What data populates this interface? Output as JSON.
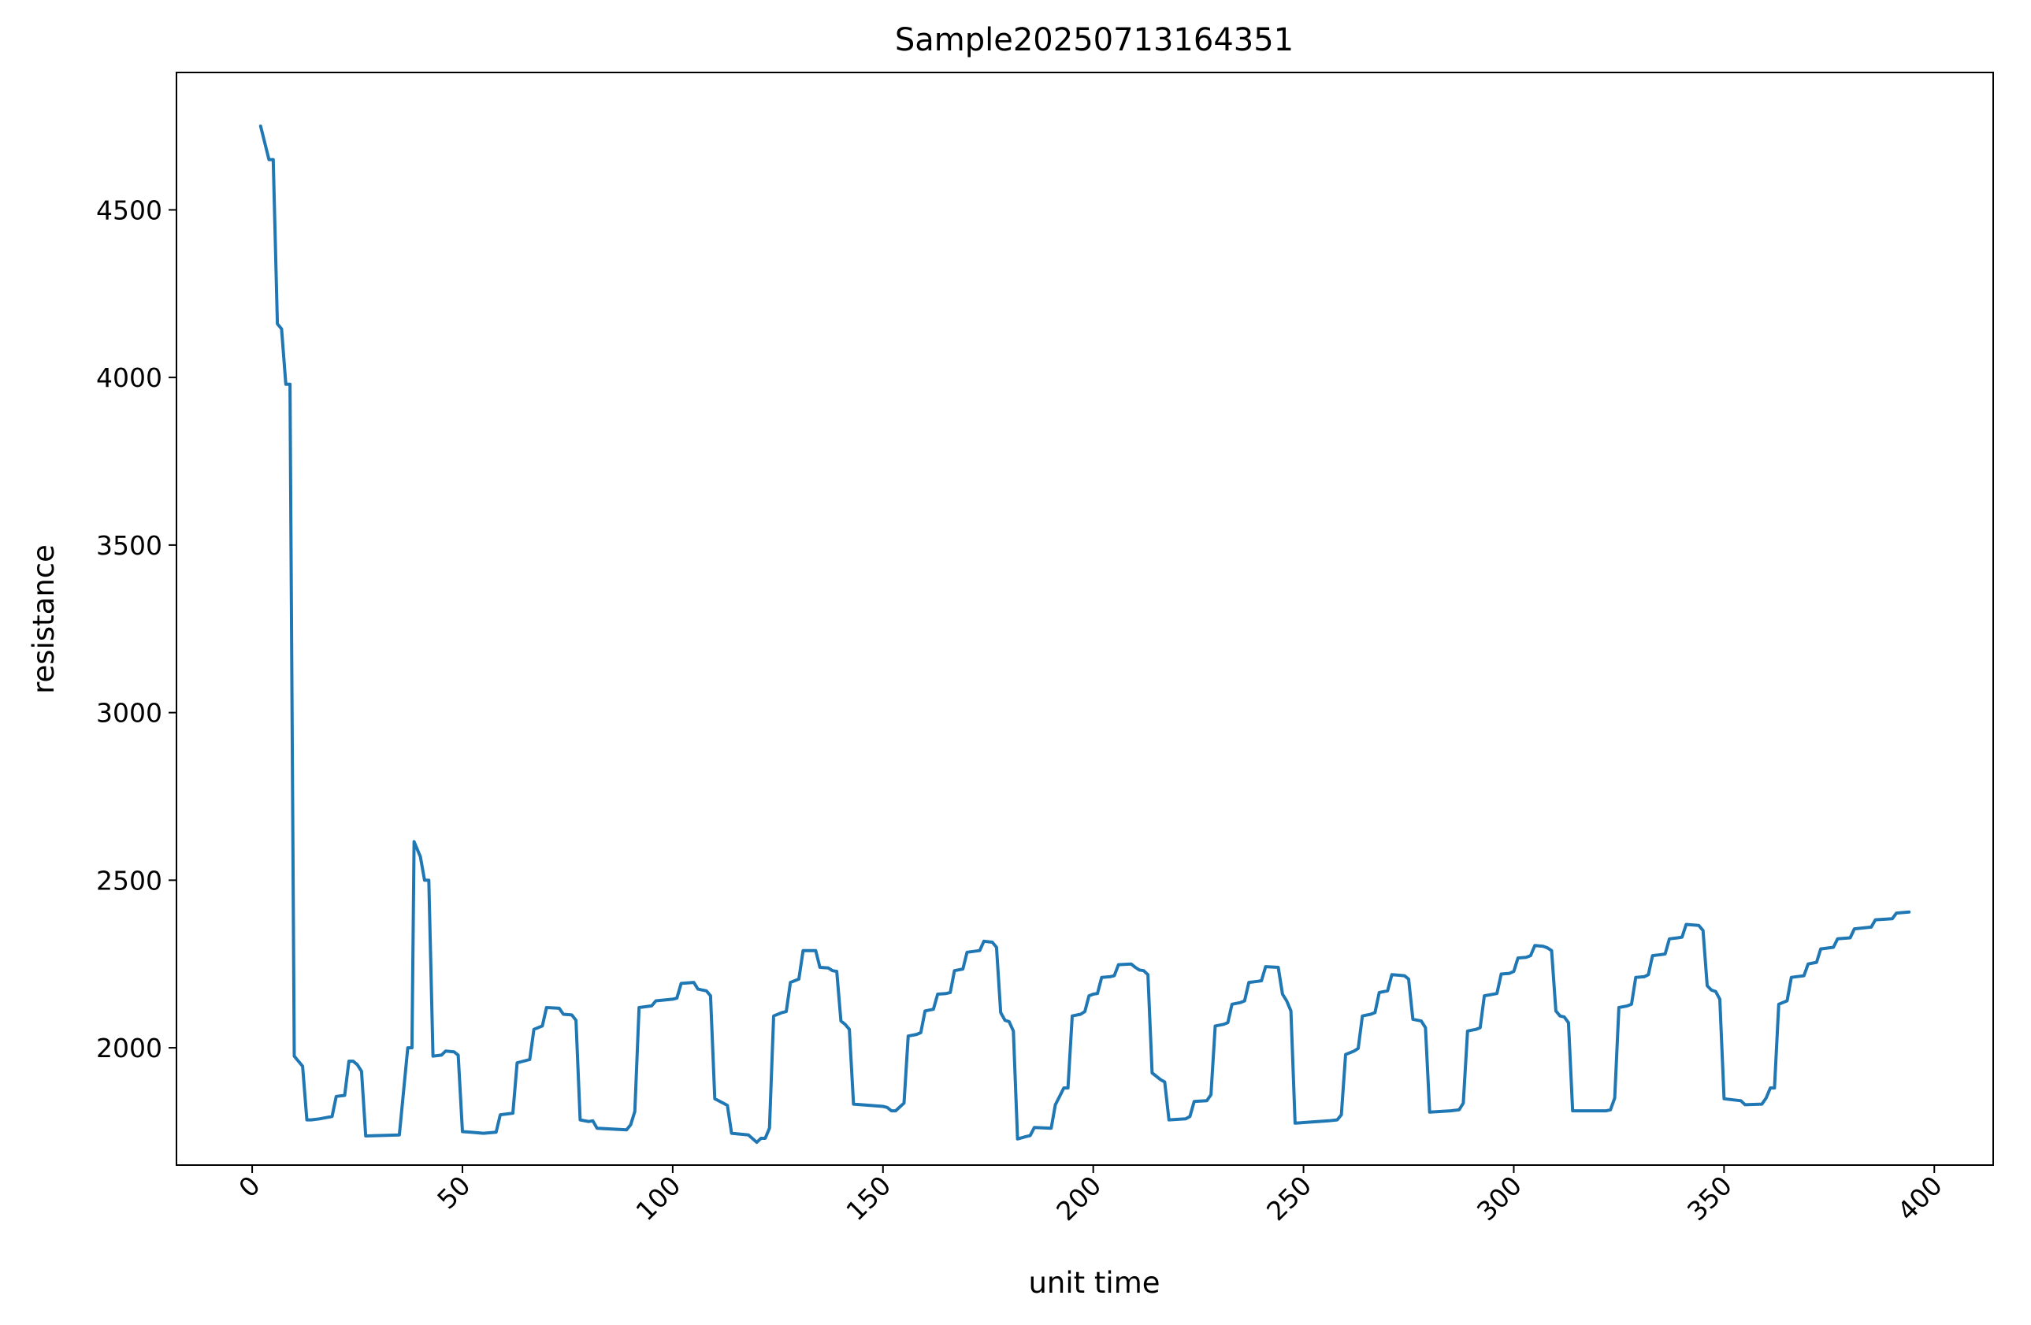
{
  "chart_data": {
    "type": "line",
    "title": "Sample20250713164351",
    "xlabel": "unit time",
    "ylabel": "resistance",
    "xlim": [
      -18,
      414
    ],
    "ylim": [
      1650,
      4910
    ],
    "xticks": [
      0,
      50,
      100,
      150,
      200,
      250,
      300,
      350,
      400
    ],
    "yticks": [
      2000,
      2500,
      3000,
      3500,
      4000,
      4500
    ],
    "xtick_rotation": 45,
    "grid": false,
    "line_color": "#1f77b4",
    "series": [
      {
        "points": [
          [
            2,
            4750
          ],
          [
            3,
            4700
          ],
          [
            4,
            4650
          ],
          [
            5,
            4650
          ],
          [
            6,
            4160
          ],
          [
            7,
            4145
          ],
          [
            8,
            3980
          ],
          [
            9,
            3980
          ],
          [
            10,
            1975
          ],
          [
            11,
            1960
          ],
          [
            12,
            1945
          ],
          [
            13,
            1785
          ],
          [
            14,
            1785
          ],
          [
            16,
            1788
          ],
          [
            19,
            1795
          ],
          [
            20,
            1855
          ],
          [
            22,
            1858
          ],
          [
            23,
            1960
          ],
          [
            24,
            1960
          ],
          [
            25,
            1950
          ],
          [
            26,
            1930
          ],
          [
            27,
            1737
          ],
          [
            35,
            1740
          ],
          [
            37,
            2000
          ],
          [
            38,
            2000
          ],
          [
            38.5,
            2615
          ],
          [
            40,
            2570
          ],
          [
            41,
            2500
          ],
          [
            42,
            2500
          ],
          [
            43,
            1975
          ],
          [
            45,
            1978
          ],
          [
            46,
            1990
          ],
          [
            48,
            1988
          ],
          [
            49,
            1978
          ],
          [
            50,
            1750
          ],
          [
            52,
            1748
          ],
          [
            55,
            1745
          ],
          [
            58,
            1748
          ],
          [
            59,
            1800
          ],
          [
            62,
            1805
          ],
          [
            63,
            1955
          ],
          [
            66,
            1965
          ],
          [
            67,
            2055
          ],
          [
            69,
            2065
          ],
          [
            70,
            2120
          ],
          [
            73,
            2118
          ],
          [
            74,
            2100
          ],
          [
            76,
            2098
          ],
          [
            77,
            2082
          ],
          [
            78,
            1785
          ],
          [
            80,
            1780
          ],
          [
            81,
            1782
          ],
          [
            82,
            1760
          ],
          [
            89,
            1755
          ],
          [
            90,
            1770
          ],
          [
            91,
            1810
          ],
          [
            92,
            2120
          ],
          [
            95,
            2125
          ],
          [
            96,
            2140
          ],
          [
            100,
            2145
          ],
          [
            101,
            2148
          ],
          [
            102,
            2192
          ],
          [
            105,
            2195
          ],
          [
            106,
            2175
          ],
          [
            108,
            2170
          ],
          [
            109,
            2155
          ],
          [
            110,
            1848
          ],
          [
            112,
            1835
          ],
          [
            113,
            1828
          ],
          [
            114,
            1745
          ],
          [
            118,
            1740
          ],
          [
            120,
            1718
          ],
          [
            121,
            1730
          ],
          [
            122,
            1730
          ],
          [
            123,
            1760
          ],
          [
            124,
            2095
          ],
          [
            126,
            2105
          ],
          [
            127,
            2108
          ],
          [
            128,
            2195
          ],
          [
            130,
            2205
          ],
          [
            131,
            2290
          ],
          [
            134,
            2290
          ],
          [
            135,
            2240
          ],
          [
            137,
            2238
          ],
          [
            138,
            2230
          ],
          [
            139,
            2228
          ],
          [
            140,
            2080
          ],
          [
            141,
            2070
          ],
          [
            142,
            2055
          ],
          [
            143,
            1832
          ],
          [
            150,
            1825
          ],
          [
            151,
            1822
          ],
          [
            152,
            1812
          ],
          [
            153,
            1812
          ],
          [
            155,
            1835
          ],
          [
            156,
            2035
          ],
          [
            158,
            2040
          ],
          [
            159,
            2045
          ],
          [
            160,
            2110
          ],
          [
            162,
            2115
          ],
          [
            163,
            2160
          ],
          [
            165,
            2162
          ],
          [
            166,
            2165
          ],
          [
            167,
            2230
          ],
          [
            169,
            2235
          ],
          [
            170,
            2285
          ],
          [
            173,
            2290
          ],
          [
            174,
            2318
          ],
          [
            176,
            2315
          ],
          [
            177,
            2300
          ],
          [
            178,
            2105
          ],
          [
            179,
            2082
          ],
          [
            180,
            2078
          ],
          [
            181,
            2050
          ],
          [
            182,
            1728
          ],
          [
            184,
            1735
          ],
          [
            185,
            1738
          ],
          [
            186,
            1762
          ],
          [
            190,
            1760
          ],
          [
            191,
            1830
          ],
          [
            192,
            1855
          ],
          [
            193,
            1880
          ],
          [
            194,
            1880
          ],
          [
            195,
            2095
          ],
          [
            197,
            2100
          ],
          [
            198,
            2108
          ],
          [
            199,
            2155
          ],
          [
            200,
            2160
          ],
          [
            201,
            2162
          ],
          [
            202,
            2210
          ],
          [
            204,
            2212
          ],
          [
            205,
            2215
          ],
          [
            206,
            2248
          ],
          [
            209,
            2250
          ],
          [
            210,
            2240
          ],
          [
            211,
            2232
          ],
          [
            212,
            2230
          ],
          [
            213,
            2218
          ],
          [
            214,
            1925
          ],
          [
            216,
            1905
          ],
          [
            217,
            1898
          ],
          [
            218,
            1785
          ],
          [
            222,
            1788
          ],
          [
            223,
            1795
          ],
          [
            224,
            1840
          ],
          [
            227,
            1842
          ],
          [
            228,
            1860
          ],
          [
            229,
            2065
          ],
          [
            231,
            2070
          ],
          [
            232,
            2075
          ],
          [
            233,
            2130
          ],
          [
            235,
            2135
          ],
          [
            236,
            2140
          ],
          [
            237,
            2195
          ],
          [
            239,
            2198
          ],
          [
            240,
            2200
          ],
          [
            241,
            2242
          ],
          [
            244,
            2240
          ],
          [
            245,
            2160
          ],
          [
            246,
            2140
          ],
          [
            247,
            2110
          ],
          [
            248,
            1775
          ],
          [
            256,
            1782
          ],
          [
            258,
            1785
          ],
          [
            259,
            1800
          ],
          [
            260,
            1980
          ],
          [
            262,
            1990
          ],
          [
            263,
            1998
          ],
          [
            264,
            2095
          ],
          [
            266,
            2100
          ],
          [
            267,
            2105
          ],
          [
            268,
            2165
          ],
          [
            270,
            2170
          ],
          [
            271,
            2218
          ],
          [
            274,
            2215
          ],
          [
            275,
            2205
          ],
          [
            276,
            2085
          ],
          [
            278,
            2080
          ],
          [
            279,
            2060
          ],
          [
            280,
            1808
          ],
          [
            285,
            1812
          ],
          [
            287,
            1815
          ],
          [
            288,
            1835
          ],
          [
            289,
            2050
          ],
          [
            291,
            2055
          ],
          [
            292,
            2060
          ],
          [
            293,
            2155
          ],
          [
            296,
            2162
          ],
          [
            297,
            2220
          ],
          [
            299,
            2222
          ],
          [
            300,
            2228
          ],
          [
            301,
            2268
          ],
          [
            303,
            2270
          ],
          [
            304,
            2275
          ],
          [
            305,
            2305
          ],
          [
            307,
            2303
          ],
          [
            308,
            2298
          ],
          [
            309,
            2290
          ],
          [
            310,
            2110
          ],
          [
            311,
            2095
          ],
          [
            312,
            2092
          ],
          [
            313,
            2075
          ],
          [
            314,
            1812
          ],
          [
            322,
            1812
          ],
          [
            323,
            1815
          ],
          [
            324,
            1850
          ],
          [
            325,
            2120
          ],
          [
            327,
            2125
          ],
          [
            328,
            2130
          ],
          [
            329,
            2210
          ],
          [
            331,
            2212
          ],
          [
            332,
            2218
          ],
          [
            333,
            2275
          ],
          [
            335,
            2278
          ],
          [
            336,
            2280
          ],
          [
            337,
            2325
          ],
          [
            339,
            2328
          ],
          [
            340,
            2330
          ],
          [
            341,
            2368
          ],
          [
            344,
            2365
          ],
          [
            345,
            2350
          ],
          [
            346,
            2185
          ],
          [
            347,
            2172
          ],
          [
            348,
            2168
          ],
          [
            349,
            2145
          ],
          [
            350,
            1848
          ],
          [
            354,
            1842
          ],
          [
            355,
            1830
          ],
          [
            359,
            1832
          ],
          [
            360,
            1850
          ],
          [
            361,
            1880
          ],
          [
            362,
            1880
          ],
          [
            363,
            2130
          ],
          [
            365,
            2140
          ],
          [
            366,
            2210
          ],
          [
            369,
            2215
          ],
          [
            370,
            2250
          ],
          [
            372,
            2255
          ],
          [
            373,
            2295
          ],
          [
            376,
            2300
          ],
          [
            377,
            2325
          ],
          [
            380,
            2328
          ],
          [
            381,
            2355
          ],
          [
            385,
            2360
          ],
          [
            386,
            2382
          ],
          [
            390,
            2385
          ],
          [
            391,
            2402
          ],
          [
            394,
            2405
          ]
        ]
      }
    ]
  }
}
